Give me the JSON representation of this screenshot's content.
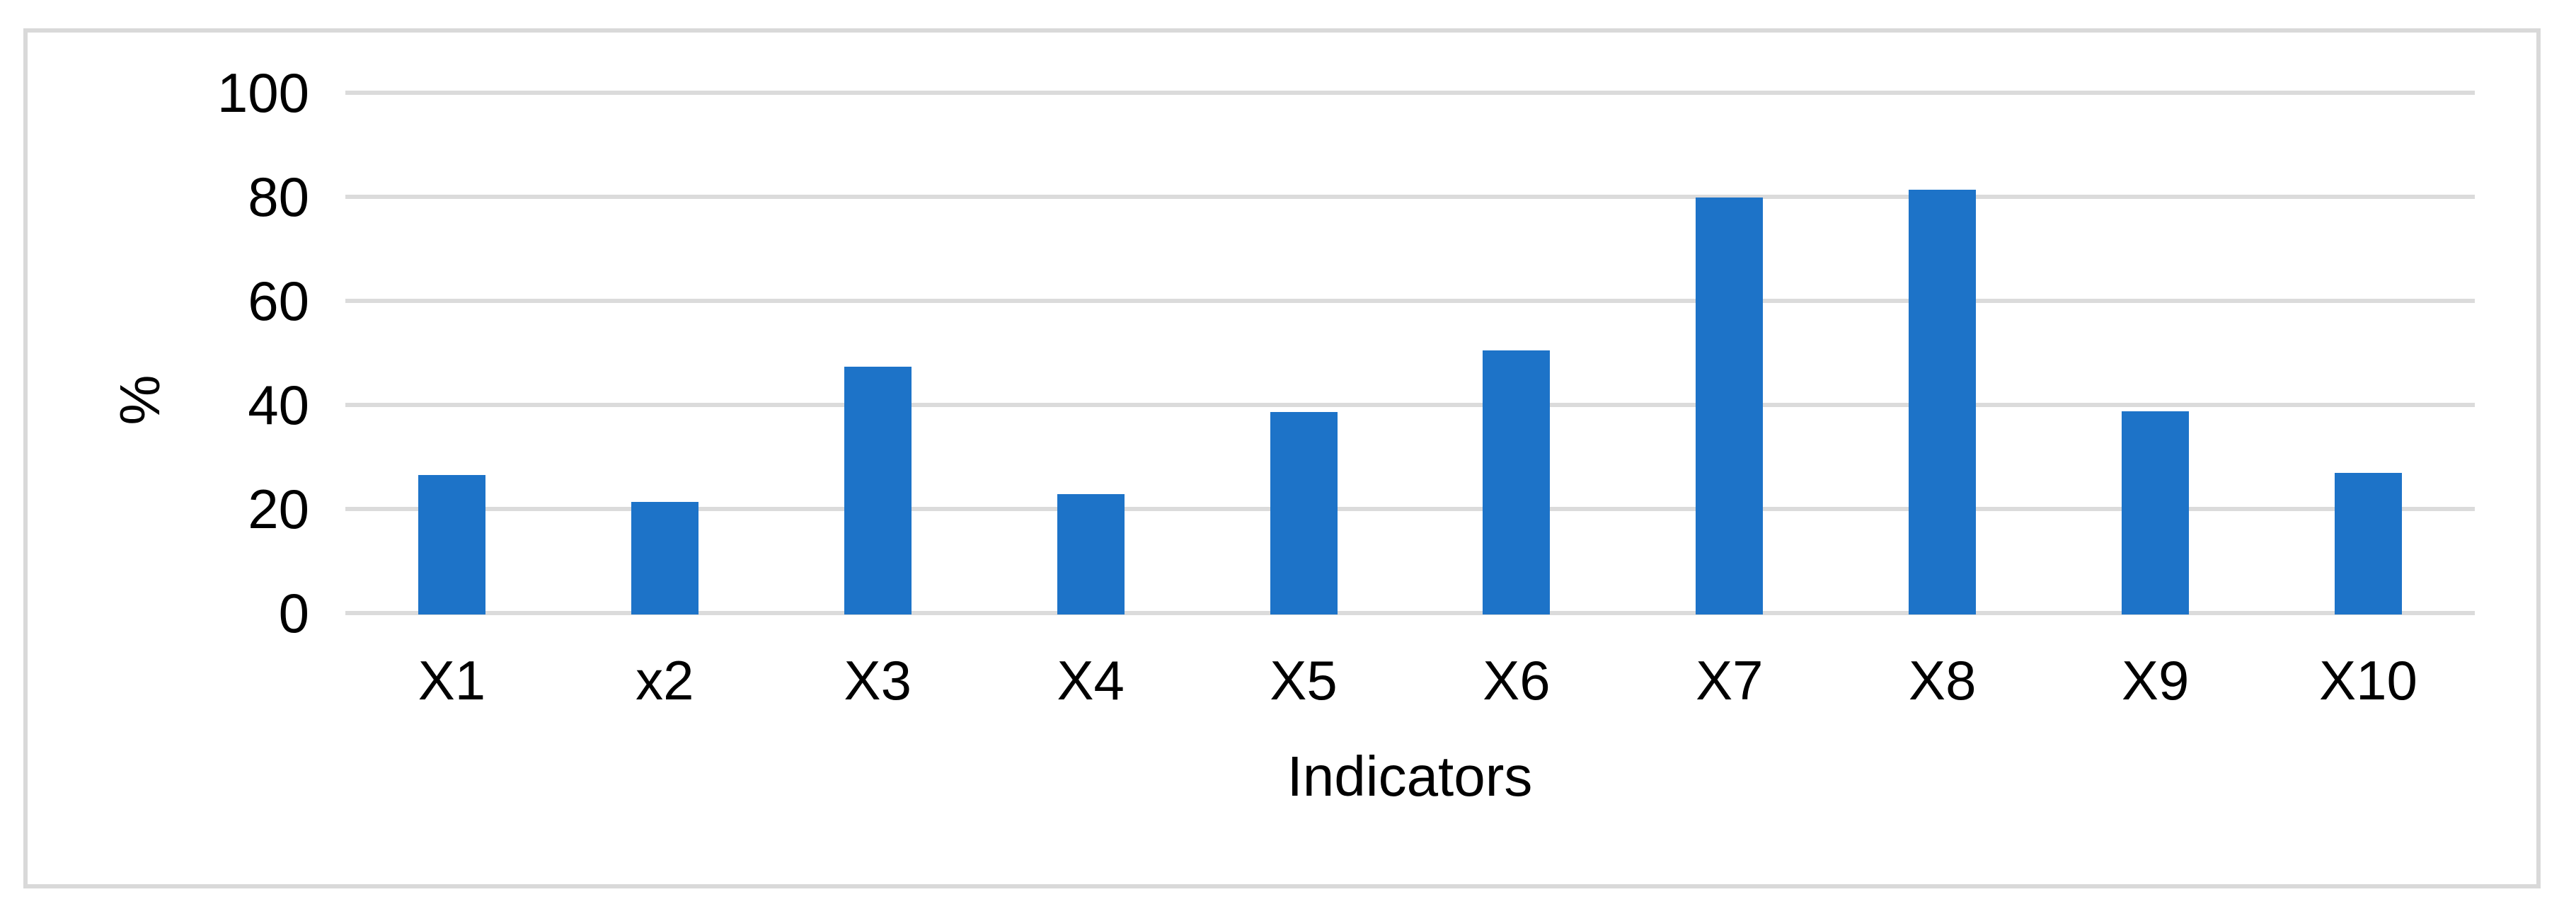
{
  "chart_data": {
    "type": "bar",
    "title": "",
    "categories": [
      "X1",
      "x2",
      "X3",
      "X4",
      "X5",
      "X6",
      "X7",
      "X8",
      "X9",
      "X10"
    ],
    "values": [
      26.5,
      21.3,
      47.4,
      22.8,
      38.6,
      50.5,
      79.9,
      81.4,
      38.8,
      27.0
    ],
    "xlabel": "Indicators",
    "ylabel": "%",
    "ylim": [
      0,
      100
    ],
    "yticks": [
      0,
      20,
      40,
      60,
      80,
      100
    ],
    "grid": true,
    "legend": "none",
    "series_count": 1,
    "bar_color": "#1d73c8",
    "gridline_color": "#dbdbdb",
    "frame_color": "#d9d9d9",
    "text_color": "#000000"
  }
}
